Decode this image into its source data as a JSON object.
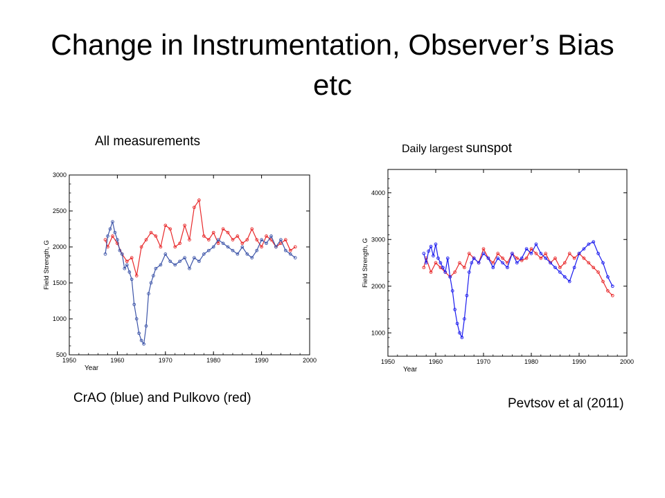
{
  "slide": {
    "title": "Change in Instrumentation, Observer’s Bias etc",
    "left_caption_top": "All measurements",
    "right_caption_top_small": "Daily largest ",
    "right_caption_top_large": "sunspot",
    "left_caption_bottom": "CrAO (blue) and Pulkovo (red)",
    "right_caption_bottom": "Pevtsov et al (2011)"
  },
  "colors": {
    "blue_left": "#3c54a8",
    "blue_right": "#1a1aee",
    "red": "#e8282a",
    "frame": "#000000"
  },
  "chart_data": [
    {
      "type": "line",
      "xlabel": "Year",
      "ylabel": "Field Strength, G",
      "xlim": [
        1950,
        2000
      ],
      "ylim": [
        500,
        3000
      ],
      "xticks": [
        1950,
        1960,
        1970,
        1980,
        1990,
        2000
      ],
      "yticks": [
        500,
        1000,
        1500,
        2000,
        2500,
        3000
      ],
      "series": [
        {
          "name": "CrAO",
          "color": "blue",
          "x": [
            1957.5,
            1958,
            1958.5,
            1959,
            1959.5,
            1960,
            1960.5,
            1961,
            1961.5,
            1962,
            1962.5,
            1963,
            1963.5,
            1964,
            1964.5,
            1965,
            1965.5,
            1966,
            1966.5,
            1967,
            1967.5,
            1968,
            1969,
            1970,
            1971,
            1972,
            1973,
            1974,
            1975,
            1976,
            1977,
            1978,
            1979,
            1980,
            1981,
            1982,
            1983,
            1984,
            1985,
            1986,
            1987,
            1988,
            1989,
            1990,
            1991,
            1992,
            1993,
            1994,
            1995,
            1996,
            1997
          ],
          "y": [
            1900,
            2150,
            2250,
            2350,
            2200,
            2100,
            1950,
            1900,
            1700,
            1750,
            1650,
            1550,
            1200,
            1000,
            800,
            700,
            650,
            900,
            1350,
            1500,
            1600,
            1700,
            1750,
            1900,
            1800,
            1750,
            1800,
            1850,
            1700,
            1850,
            1800,
            1900,
            1950,
            2000,
            2100,
            2050,
            2000,
            1950,
            1900,
            2000,
            1900,
            1850,
            1950,
            2100,
            2050,
            2150,
            2000,
            2100,
            1950,
            1900,
            1850
          ]
        },
        {
          "name": "Pulkovo",
          "color": "red",
          "x": [
            1957.5,
            1958,
            1959,
            1960,
            1961,
            1962,
            1963,
            1964,
            1965,
            1966,
            1967,
            1968,
            1969,
            1970,
            1971,
            1972,
            1973,
            1974,
            1975,
            1976,
            1977,
            1978,
            1979,
            1980,
            1981,
            1982,
            1983,
            1984,
            1985,
            1986,
            1987,
            1988,
            1989,
            1990,
            1991,
            1992,
            1993,
            1994,
            1995,
            1996,
            1997
          ],
          "y": [
            2100,
            2000,
            2150,
            2050,
            1900,
            1800,
            1850,
            1600,
            2000,
            2100,
            2200,
            2150,
            2000,
            2300,
            2250,
            2000,
            2050,
            2300,
            2100,
            2550,
            2650,
            2150,
            2100,
            2200,
            2050,
            2250,
            2200,
            2100,
            2150,
            2050,
            2100,
            2250,
            2100,
            2000,
            2150,
            2100,
            2000,
            2050,
            2100,
            1950,
            2000
          ]
        }
      ]
    },
    {
      "type": "line",
      "xlabel": "Year",
      "ylabel": "Field Strength, G",
      "xlim": [
        1950,
        2000
      ],
      "ylim": [
        500,
        4500
      ],
      "xticks": [
        1950,
        1960,
        1970,
        1980,
        1990,
        2000
      ],
      "yticks": [
        1000,
        2000,
        3000,
        4000
      ],
      "series": [
        {
          "name": "CrAO",
          "color": "blue",
          "x": [
            1957.5,
            1958,
            1958.5,
            1959,
            1959.5,
            1960,
            1960.5,
            1961,
            1961.5,
            1962,
            1962.5,
            1963,
            1963.5,
            1964,
            1964.5,
            1965,
            1965.5,
            1966,
            1966.5,
            1967,
            1967.5,
            1968,
            1969,
            1970,
            1971,
            1972,
            1973,
            1974,
            1975,
            1976,
            1977,
            1978,
            1979,
            1980,
            1981,
            1982,
            1983,
            1984,
            1985,
            1986,
            1987,
            1988,
            1989,
            1990,
            1991,
            1992,
            1993,
            1994,
            1995,
            1996,
            1997
          ],
          "y": [
            2700,
            2500,
            2750,
            2850,
            2650,
            2900,
            2600,
            2500,
            2400,
            2300,
            2600,
            2200,
            1900,
            1500,
            1200,
            1000,
            900,
            1300,
            1800,
            2300,
            2500,
            2600,
            2500,
            2700,
            2600,
            2400,
            2600,
            2500,
            2400,
            2700,
            2500,
            2600,
            2800,
            2700,
            2900,
            2700,
            2600,
            2500,
            2400,
            2300,
            2200,
            2100,
            2400,
            2700,
            2800,
            2900,
            2950,
            2700,
            2500,
            2200,
            2000
          ]
        },
        {
          "name": "Pulkovo",
          "color": "red",
          "x": [
            1957.5,
            1958,
            1959,
            1960,
            1961,
            1962,
            1963,
            1964,
            1965,
            1966,
            1967,
            1968,
            1969,
            1970,
            1971,
            1972,
            1973,
            1974,
            1975,
            1976,
            1977,
            1978,
            1979,
            1980,
            1981,
            1982,
            1983,
            1984,
            1985,
            1986,
            1987,
            1988,
            1989,
            1990,
            1991,
            1992,
            1993,
            1994,
            1995,
            1996,
            1997
          ],
          "y": [
            2400,
            2600,
            2300,
            2500,
            2400,
            2300,
            2200,
            2300,
            2500,
            2400,
            2700,
            2600,
            2500,
            2800,
            2600,
            2500,
            2700,
            2600,
            2500,
            2700,
            2600,
            2550,
            2600,
            2800,
            2700,
            2600,
            2700,
            2500,
            2600,
            2400,
            2500,
            2700,
            2600,
            2700,
            2600,
            2500,
            2400,
            2300,
            2100,
            1900,
            1800
          ]
        }
      ]
    }
  ]
}
